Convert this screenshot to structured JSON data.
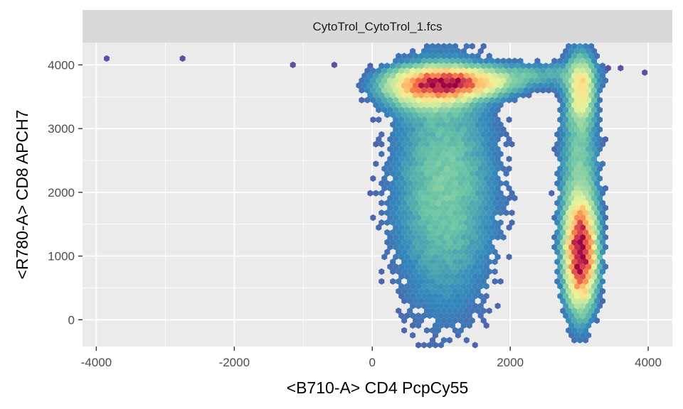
{
  "chart_data": {
    "type": "hexbin",
    "facet_title": "CytoTrol_CytoTrol_1.fcs",
    "xlabel": "<B710-A> CD4 PcpCy55",
    "ylabel": "<R780-A> CD8 APCH7",
    "xlim": [
      -4200,
      4350
    ],
    "ylim": [
      -420,
      4350
    ],
    "x_ticks": [
      -4000,
      -2000,
      0,
      2000,
      4000
    ],
    "x_tick_labels": [
      "-4000",
      "-2000",
      "0",
      "2000",
      "4000"
    ],
    "y_ticks": [
      0,
      1000,
      2000,
      3000,
      4000
    ],
    "y_tick_labels": [
      "0",
      "1000",
      "2000",
      "3000",
      "4000"
    ],
    "grid": true,
    "colormap": [
      "#5e4fa2",
      "#3288bd",
      "#66c2a5",
      "#abdda4",
      "#e6f598",
      "#fee08b",
      "#fdae61",
      "#f46d43",
      "#d53e4f",
      "#9e0142"
    ],
    "panel_background": "#ebebeb",
    "strip_background": "#d9d9d9",
    "populations": [
      {
        "name": "CD4+ cluster",
        "center": [
          3020,
          1050
        ],
        "spread": [
          130,
          480
        ],
        "peak": 1.0
      },
      {
        "name": "CD4+ upper tail",
        "center": [
          3030,
          3600
        ],
        "spread": [
          110,
          300
        ],
        "peak": 0.38
      },
      {
        "name": "CD4+ column",
        "center": [
          3000,
          2200
        ],
        "spread": [
          180,
          1200
        ],
        "peak": 0.16
      },
      {
        "name": "CD8+ cluster",
        "center": [
          1150,
          3720
        ],
        "spread": [
          480,
          140
        ],
        "peak": 0.72
      },
      {
        "name": "CD8+ shoulder",
        "center": [
          800,
          3620
        ],
        "spread": [
          380,
          200
        ],
        "peak": 0.38
      },
      {
        "name": "CD8+ column",
        "center": [
          1050,
          2100
        ],
        "spread": [
          480,
          1250
        ],
        "peak": 0.16
      },
      {
        "name": "bridge",
        "center": [
          2400,
          3850
        ],
        "spread": [
          600,
          130
        ],
        "peak": 0.1
      }
    ],
    "outliers": [
      [
        -3850,
        4100
      ],
      [
        -2750,
        4100
      ],
      [
        -1150,
        4000
      ],
      [
        -550,
        4000
      ],
      [
        3950,
        3880
      ],
      [
        3600,
        3950
      ],
      [
        3420,
        3950
      ]
    ]
  }
}
